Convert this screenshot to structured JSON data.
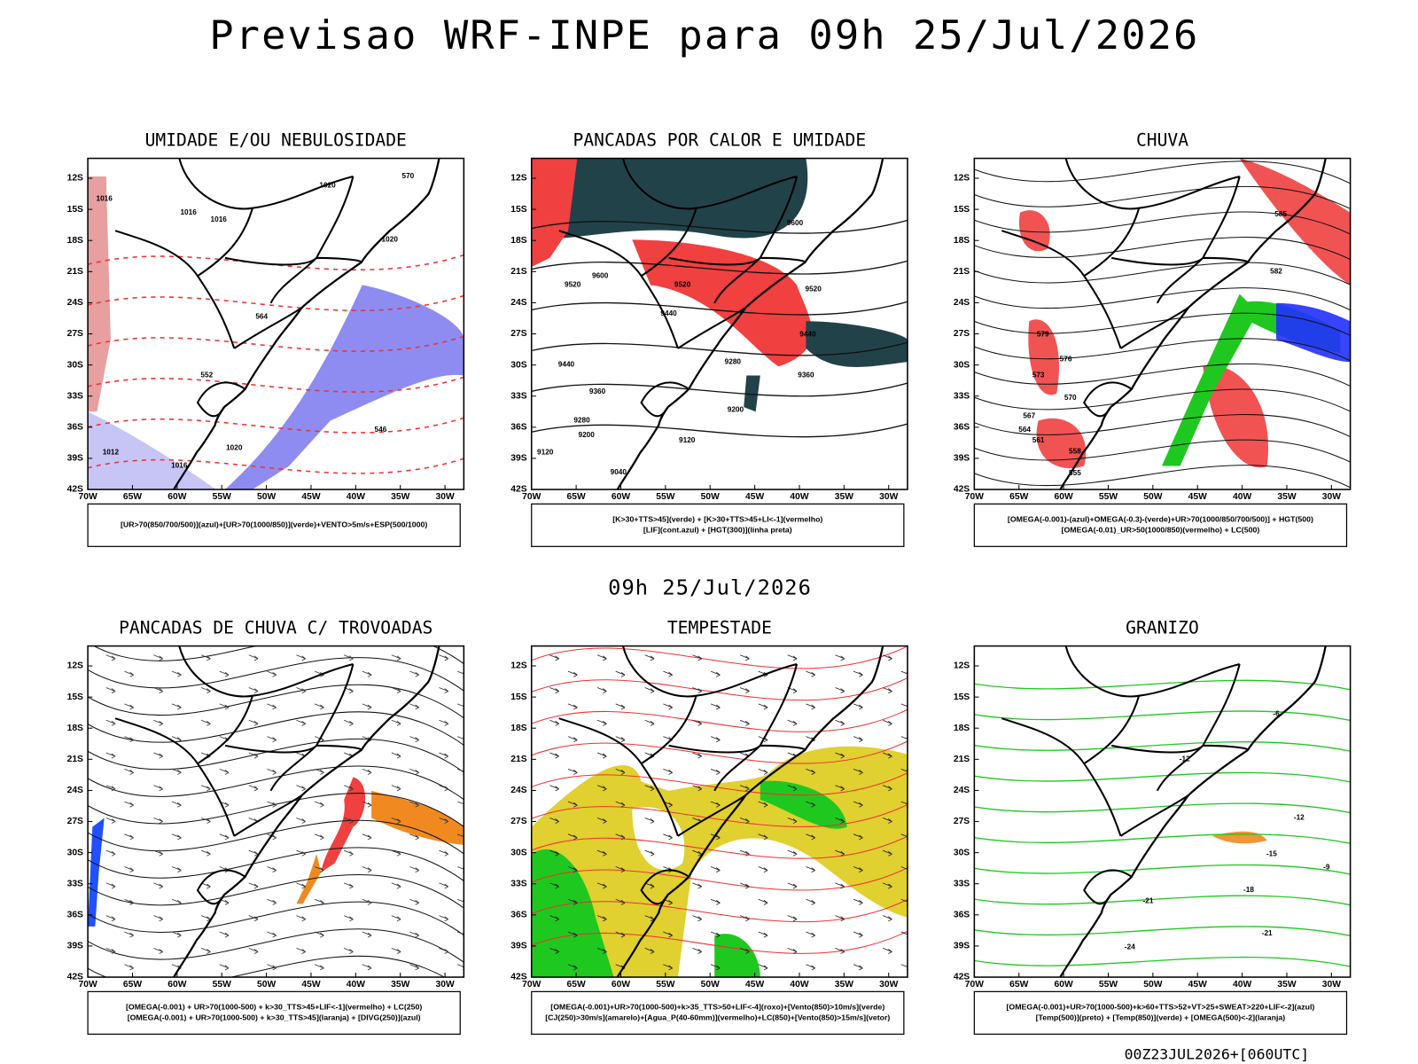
{
  "header": {
    "title": "Previsao WRF-INPE  para 09h 25/Jul/2026",
    "subtitle": "09h 25/Jul/2026",
    "footer": "00Z23JUL2026+[060UTC]"
  },
  "lat_labels": [
    "12S",
    "15S",
    "18S",
    "21S",
    "24S",
    "27S",
    "30S",
    "33S",
    "36S",
    "39S",
    "42S"
  ],
  "lon_labels": [
    "70W",
    "65W",
    "60W",
    "55W",
    "50W",
    "45W",
    "40W",
    "35W",
    "30W"
  ],
  "panels": [
    {
      "title": "UMIDADE E/OU NEBULOSIDADE",
      "legend": [
        "[UR>70(850/700/500)](azul)+[UR>70(1000/850)](verde)+VENTO>5m/s+ESP(500/1000)"
      ],
      "contour_labels": [
        "1016",
        "1016",
        "1016",
        "1020",
        "1020",
        "1012",
        "1020",
        "1016",
        "564",
        "552",
        "546",
        "570"
      ]
    },
    {
      "title": "PANCADAS POR CALOR E UMIDADE",
      "legend": [
        "[K>30+TTS>45](verde) + [K>30+TTS>45+LI<-1](vermelho)",
        "[LIF](cont.azul) + [HGT(300)](linha preta)"
      ],
      "contour_labels": [
        "9600",
        "9600",
        "9520",
        "9520",
        "9520",
        "9440",
        "9440",
        "9440",
        "9360",
        "9360",
        "9280",
        "9280",
        "9200",
        "9200",
        "9120",
        "9120",
        "9040"
      ]
    },
    {
      "title": "CHUVA",
      "legend": [
        "[OMEGA(-0.001)-(azul)+OMEGA(-0.3)-(verde)+UR>70(1000/850/700/500)] + HGT(500)",
        "[OMEGA(-0.01)_UR>50(1000/850)(vermelho) + LC(500)"
      ],
      "contour_labels": [
        "585",
        "582",
        "579",
        "576",
        "573",
        "570",
        "567",
        "564",
        "561",
        "558",
        "555"
      ]
    },
    {
      "title": "PANCADAS DE CHUVA C/ TROVOADAS",
      "legend": [
        "[OMEGA(-0.001) + UR>70(1000-500) + k>30_TTS>45+LIF<-1](vermelho) + LC(250)",
        "[OMEGA(-0.001) + UR>70(1000-500) + k>30_TTS>45](laranja) + [DIVG(250)](azul)"
      ],
      "contour_labels": []
    },
    {
      "title": "TEMPESTADE",
      "legend": [
        "[OMEGA(-0.001)+UR>70(1000-500)+k>35_TTS>50+LIF<-4](roxo)+[Vento(850)>10m/s](verde)",
        "[CJ(250)>30m/s](amarelo)+[Agua_P(40-60mm)](vermelho)+LC(850)+[Vento(850)>15m/s](vetor)"
      ],
      "contour_labels": []
    },
    {
      "title": "GRANIZO",
      "legend": [
        "[OMEGA(-0.001)+UR>70(1000-500)+k>60+TTS>52+VT>25+SWEAT>220+LIF<-2](azul)",
        "[Temp(500)](preto) + [Temp(850)](verde) + [OMEGA(500)<-2](laranja)"
      ],
      "contour_labels": [
        "-12",
        "-12",
        "-15",
        "-18",
        "-21",
        "-21",
        "-24",
        "-9",
        "-6"
      ]
    }
  ]
}
